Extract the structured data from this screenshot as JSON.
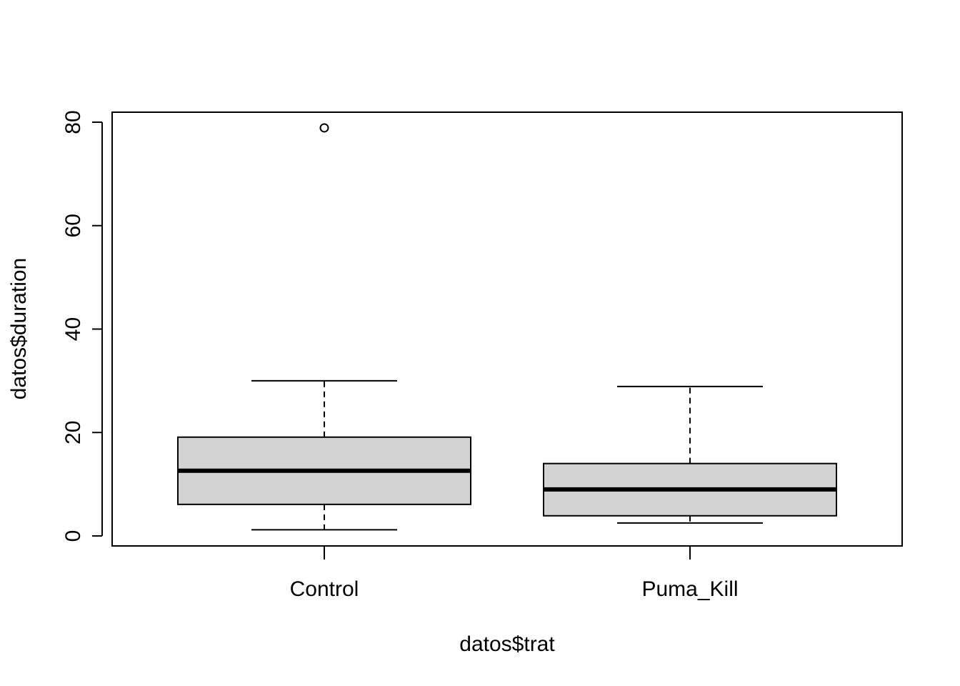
{
  "chart_data": {
    "type": "boxplot",
    "title": "",
    "xlabel": "datos$trat",
    "ylabel": "datos$duration",
    "ylim": [
      -2,
      82
    ],
    "yticks": [
      0,
      20,
      40,
      60,
      80
    ],
    "grid": false,
    "categories": [
      "Control",
      "Puma_Kill"
    ],
    "boxes": [
      {
        "category": "Control",
        "whisker_low": 1.2,
        "q1": 6.1,
        "median": 12.6,
        "q3": 19.1,
        "whisker_high": 30.0,
        "outliers": [
          78.9
        ]
      },
      {
        "category": "Puma_Kill",
        "whisker_low": 2.5,
        "q1": 3.9,
        "median": 9.0,
        "q3": 14.0,
        "whisker_high": 28.9,
        "outliers": []
      }
    ],
    "box_fill": "#d3d3d3"
  }
}
